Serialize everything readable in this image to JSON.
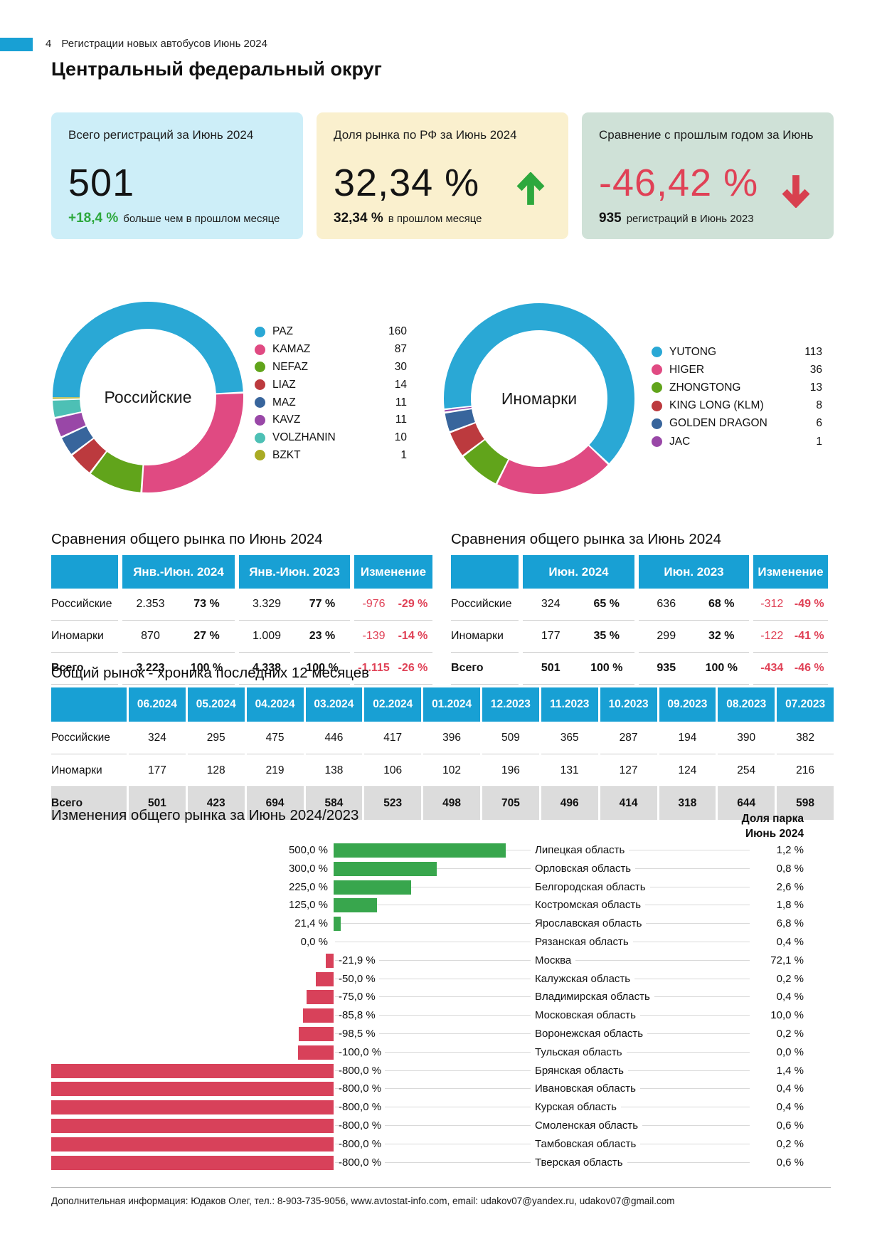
{
  "page": {
    "page_number": "4",
    "header_title": "Регистрации новых автобусов Июнь 2024",
    "title": "Центральный федеральный округ",
    "footer": "Дополнительная информация: Юдаков Олег, тел.: 8-903-735-9056, www.avtostat-info.com, email: udakov07@yandex.ru, udakov07@gmail.com"
  },
  "colors": {
    "accent_blue": "#18a0d4",
    "green": "#2da83d",
    "red": "#e04156",
    "bar_green": "#38a64d",
    "bar_red": "#d8415a",
    "card1_bg": "#cdeef8",
    "card2_bg": "#faf0ce",
    "card3_bg": "#cfe1d7",
    "total_row_bg": "#dcdcdc"
  },
  "cards": [
    {
      "title": "Всего регистраций за Июнь 2024",
      "value": "501",
      "foot_value": "+18,4 %",
      "foot_text": "больше чем в прошлом месяце"
    },
    {
      "title": "Доля рынка по РФ за Июнь 2024",
      "value": "32,34 %",
      "arrow": "up",
      "foot_value": "32,34 %",
      "foot_text": "в прошлом месяце"
    },
    {
      "title": "Сравнение с прошлым годом за Июнь",
      "value": "-46,42 %",
      "arrow": "down",
      "foot_value": "935",
      "foot_text": "регистраций в Июнь 2023"
    }
  ],
  "chart_data": [
    {
      "type": "pie",
      "title": "Российские",
      "start_angle": 270,
      "labels": [
        "PAZ",
        "KAMAZ",
        "NEFAZ",
        "LIAZ",
        "MAZ",
        "KAVZ",
        "VOLZHANIN",
        "BZKT"
      ],
      "values": [
        160,
        87,
        30,
        14,
        11,
        11,
        10,
        1
      ],
      "colors": [
        "#2aa8d5",
        "#e04a82",
        "#61a41b",
        "#bc3a3e",
        "#38659c",
        "#9947a7",
        "#4dc0b5",
        "#a9ab24"
      ],
      "legend_position": "right"
    },
    {
      "type": "pie",
      "title": "Иномарки",
      "start_angle": 264,
      "labels": [
        "YUTONG",
        "HIGER",
        "ZHONGTONG",
        "KING LONG (KLM)",
        "GOLDEN DRAGON",
        "JAC"
      ],
      "values": [
        113,
        36,
        13,
        8,
        6,
        1
      ],
      "colors": [
        "#2aa8d5",
        "#e04a82",
        "#61a41b",
        "#bc3a3e",
        "#38659c",
        "#9947a7"
      ],
      "legend_position": "right"
    },
    {
      "type": "bar",
      "title": "Изменения общего рынка за Июнь 2024/2023",
      "share_header_line1": "Доля парка",
      "share_header_line2": "Июнь 2024",
      "xlim": [
        -800,
        500
      ],
      "rows": [
        {
          "region": "Липецкая область",
          "change": 500.0,
          "change_label": "500,0 %",
          "share_label": "1,2 %"
        },
        {
          "region": "Орловская область",
          "change": 300.0,
          "change_label": "300,0 %",
          "share_label": "0,8 %"
        },
        {
          "region": "Белгородская область",
          "change": 225.0,
          "change_label": "225,0 %",
          "share_label": "2,6 %"
        },
        {
          "region": "Костромская область",
          "change": 125.0,
          "change_label": "125,0 %",
          "share_label": "1,8 %"
        },
        {
          "region": "Ярославская область",
          "change": 21.4,
          "change_label": "21,4 %",
          "share_label": "6,8 %"
        },
        {
          "region": "Рязанская область",
          "change": 0.0,
          "change_label": "0,0 %",
          "share_label": "0,4 %"
        },
        {
          "region": "Москва",
          "change": -21.9,
          "change_label": "-21,9 %",
          "share_label": "72,1 %"
        },
        {
          "region": "Калужская область",
          "change": -50.0,
          "change_label": "-50,0 %",
          "share_label": "0,2 %"
        },
        {
          "region": "Владимирская область",
          "change": -75.0,
          "change_label": "-75,0 %",
          "share_label": "0,4 %"
        },
        {
          "region": "Московская область",
          "change": -85.8,
          "change_label": "-85,8 %",
          "share_label": "10,0 %"
        },
        {
          "region": "Воронежская область",
          "change": -98.5,
          "change_label": "-98,5 %",
          "share_label": "0,2 %"
        },
        {
          "region": "Тульская область",
          "change": -100.0,
          "change_label": "-100,0 %",
          "share_label": "0,0 %"
        },
        {
          "region": "Брянская область",
          "change": -800.0,
          "change_label": "-800,0 %",
          "share_label": "1,4 %"
        },
        {
          "region": "Ивановская область",
          "change": -800.0,
          "change_label": "-800,0 %",
          "share_label": "0,4 %"
        },
        {
          "region": "Курская область",
          "change": -800.0,
          "change_label": "-800,0 %",
          "share_label": "0,4 %"
        },
        {
          "region": "Смоленская область",
          "change": -800.0,
          "change_label": "-800,0 %",
          "share_label": "0,6 %"
        },
        {
          "region": "Тамбовская область",
          "change": -800.0,
          "change_label": "-800,0 %",
          "share_label": "0,2 %"
        },
        {
          "region": "Тверская область",
          "change": -800.0,
          "change_label": "-800,0 %",
          "share_label": "0,6 %"
        }
      ]
    }
  ],
  "tables": {
    "period": {
      "title": "Сравнения общего рынка по Июнь 2024",
      "col_groups": [
        "Янв.-Июн. 2024",
        "Янв.-Июн. 2023",
        "Изменение"
      ],
      "rows": [
        {
          "label": "Российские",
          "cells": [
            "2.353",
            "73 %",
            "3.329",
            "77 %",
            "-976",
            "-29 %"
          ],
          "total": false
        },
        {
          "label": "Иномарки",
          "cells": [
            "870",
            "27 %",
            "1.009",
            "23 %",
            "-139",
            "-14 %"
          ],
          "total": false
        },
        {
          "label": "Всего",
          "cells": [
            "3.223",
            "100 %",
            "4.338",
            "100 %",
            "-1.115",
            "-26 %"
          ],
          "total": true
        }
      ]
    },
    "month": {
      "title": "Сравнения общего рынка за Июнь 2024",
      "col_groups": [
        "Июн. 2024",
        "Июн. 2023",
        "Изменение"
      ],
      "rows": [
        {
          "label": "Российские",
          "cells": [
            "324",
            "65 %",
            "636",
            "68 %",
            "-312",
            "-49 %"
          ],
          "total": false
        },
        {
          "label": "Иномарки",
          "cells": [
            "177",
            "35 %",
            "299",
            "32 %",
            "-122",
            "-41 %"
          ],
          "total": false
        },
        {
          "label": "Всего",
          "cells": [
            "501",
            "100 %",
            "935",
            "100 %",
            "-434",
            "-46 %"
          ],
          "total": true
        }
      ]
    },
    "history": {
      "title": "Общий рынок - хроника последних 12 месяцев",
      "columns": [
        "06.2024",
        "05.2024",
        "04.2024",
        "03.2024",
        "02.2024",
        "01.2024",
        "12.2023",
        "11.2023",
        "10.2023",
        "09.2023",
        "08.2023",
        "07.2023"
      ],
      "rows": [
        {
          "label": "Российские",
          "values": [
            "324",
            "295",
            "475",
            "446",
            "417",
            "396",
            "509",
            "365",
            "287",
            "194",
            "390",
            "382"
          ],
          "total": false
        },
        {
          "label": "Иномарки",
          "values": [
            "177",
            "128",
            "219",
            "138",
            "106",
            "102",
            "196",
            "131",
            "127",
            "124",
            "254",
            "216"
          ],
          "total": false
        },
        {
          "label": "Всего",
          "values": [
            "501",
            "423",
            "694",
            "584",
            "523",
            "498",
            "705",
            "496",
            "414",
            "318",
            "644",
            "598"
          ],
          "total": true
        }
      ]
    }
  }
}
